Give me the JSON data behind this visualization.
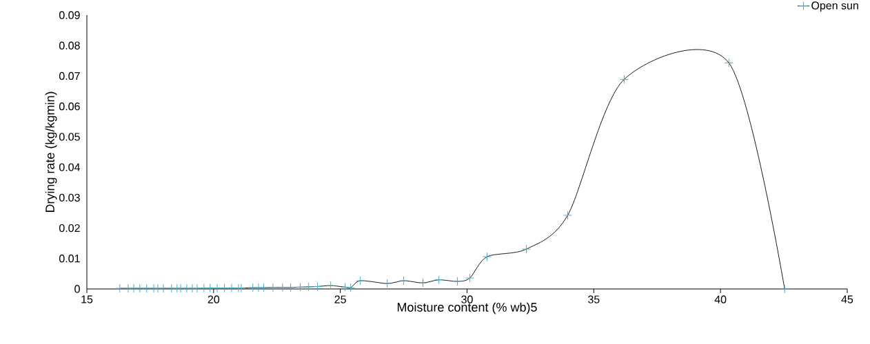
{
  "chart_data": {
    "type": "line",
    "xlabel": "Moisture content  (% wb)5",
    "ylabel": "Drying rate (kg/kgmin)",
    "x": [
      16.3,
      16.63,
      16.85,
      17.09,
      17.36,
      17.64,
      17.8,
      18.02,
      18.34,
      18.56,
      18.7,
      18.94,
      19.16,
      19.35,
      19.62,
      19.86,
      20.14,
      20.43,
      20.71,
      20.98,
      21.09,
      21.55,
      21.77,
      21.98,
      22.34,
      22.72,
      23.04,
      23.42,
      23.75,
      24.1,
      24.62,
      25.19,
      25.41,
      25.79,
      26.85,
      27.5,
      28.26,
      28.89,
      29.62,
      30.11,
      30.79,
      32.34,
      33.97,
      36.2,
      40.33,
      42.53
    ],
    "series": [
      {
        "name": "Open sun",
        "color": "#4bacc6",
        "values": [
          0.0002,
          0.0002,
          0.0002,
          0.0002,
          0.0002,
          0.0002,
          0.0002,
          0.0002,
          0.0002,
          0.0002,
          0.0002,
          0.0002,
          0.0002,
          0.0002,
          0.0003,
          0.0003,
          0.0003,
          0.0003,
          0.0003,
          0.0003,
          0.0003,
          0.0004,
          0.0004,
          0.0004,
          0.0005,
          0.0005,
          0.0005,
          0.0006,
          0.0007,
          0.0008,
          0.0011,
          0.0006,
          0.0004,
          0.0027,
          0.0018,
          0.0027,
          0.002,
          0.003,
          0.0025,
          0.0036,
          0.0106,
          0.0131,
          0.0242,
          0.0689,
          0.0743,
          0
        ]
      }
    ],
    "xlim": [
      15,
      45
    ],
    "xticks": [
      15,
      20,
      25,
      30,
      35,
      40,
      45
    ],
    "ylim": [
      0,
      0.09
    ],
    "yticks": [
      0,
      0.01,
      0.02,
      0.03,
      0.04,
      0.05,
      0.06,
      0.07,
      0.08,
      0.09
    ],
    "grid": false,
    "legend": "top right",
    "marker": "cross",
    "line_style": "solid"
  }
}
